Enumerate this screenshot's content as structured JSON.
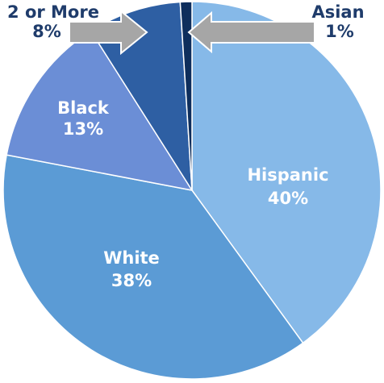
{
  "chart_data": {
    "type": "pie",
    "categories": [
      "Hispanic",
      "White",
      "Black",
      "2 or More",
      "Asian"
    ],
    "values": [
      40,
      38,
      13,
      8,
      1
    ],
    "value_labels": [
      "40%",
      "38%",
      "13%",
      "8%",
      "1%"
    ],
    "colors": [
      "#86b9e8",
      "#5b9bd5",
      "#6b8ed6",
      "#2e5fa3",
      "#0e2e5c"
    ],
    "start": "top, clockwise",
    "outside_labels": [
      "2 or More",
      "Asian"
    ],
    "arrow_color": "#a6a6a6"
  }
}
